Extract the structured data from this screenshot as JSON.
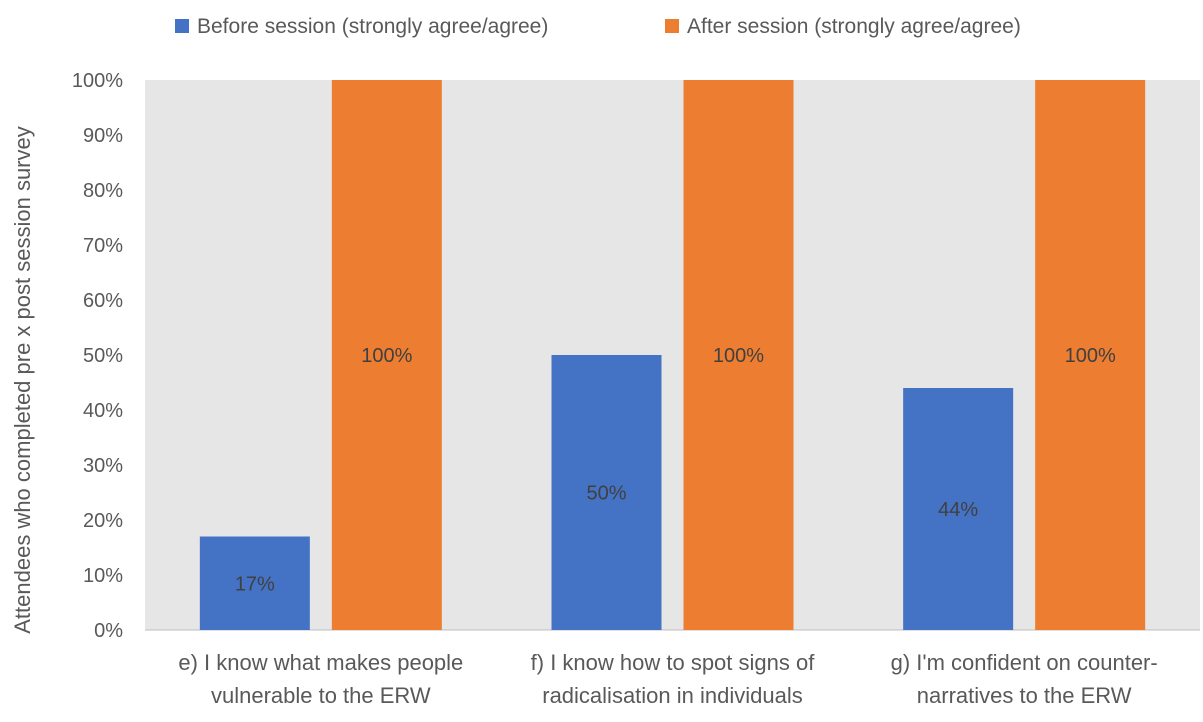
{
  "chart_data": {
    "type": "bar",
    "categories": [
      [
        "e) I know what makes people",
        "vulnerable to the ERW"
      ],
      [
        "f) I know how to spot signs of",
        "radicalisation in individuals"
      ],
      [
        "g) I'm confident on  counter-",
        "narratives to the ERW"
      ]
    ],
    "series": [
      {
        "name": "Before session (strongly agree/agree)",
        "values": [
          17,
          50,
          44
        ],
        "labels": [
          "17%",
          "50%",
          "44%"
        ],
        "color": "#4472C4"
      },
      {
        "name": "After session (strongly agree/agree)",
        "values": [
          100,
          100,
          100
        ],
        "labels": [
          "100%",
          "100%",
          "100%"
        ],
        "color": "#ED7D31"
      }
    ],
    "title": "",
    "xlabel": "",
    "ylabel": "Attendees who completed pre x post session survey",
    "ylim": [
      0,
      100
    ],
    "yticks": [
      "0%",
      "10%",
      "20%",
      "30%",
      "40%",
      "50%",
      "60%",
      "70%",
      "80%",
      "90%",
      "100%"
    ],
    "grid": false,
    "legend_position": "top",
    "plot_background": "#E7E6E6",
    "label_color": "#404040",
    "axis_text_color": "#595959"
  }
}
